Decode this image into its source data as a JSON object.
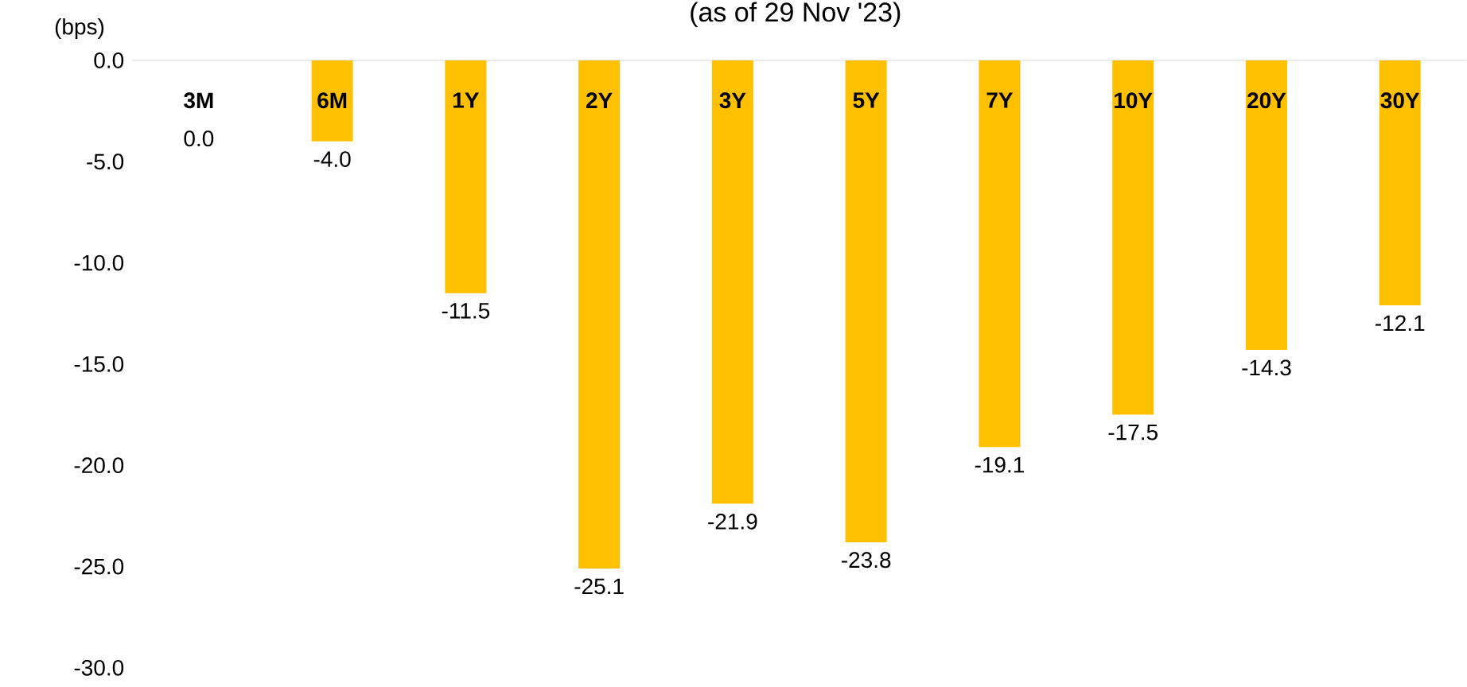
{
  "chart_data": {
    "type": "bar",
    "title": "(as of 29 Nov '23)",
    "ylabel": "(bps)",
    "categories": [
      "3M",
      "6M",
      "1Y",
      "2Y",
      "3Y",
      "5Y",
      "7Y",
      "10Y",
      "20Y",
      "30Y"
    ],
    "values": [
      0.0,
      -4.0,
      -11.5,
      -25.1,
      -21.9,
      -23.8,
      -19.1,
      -17.5,
      -14.3,
      -12.1
    ],
    "value_labels": [
      "0.0",
      "-4.0",
      "-11.5",
      "-25.1",
      "-21.9",
      "-23.8",
      "-19.1",
      "-17.5",
      "-14.3",
      "-12.1"
    ],
    "color": "#ffc000",
    "ylim": [
      -30,
      0
    ],
    "yticks": [
      {
        "value": 0,
        "label": "0.0"
      },
      {
        "value": -5,
        "label": "-5.0"
      },
      {
        "value": -10,
        "label": "-10.0"
      },
      {
        "value": -15,
        "label": "-15.0"
      },
      {
        "value": -20,
        "label": "-20.0"
      },
      {
        "value": -25,
        "label": "-25.0"
      },
      {
        "value": -30,
        "label": "-30.0"
      }
    ]
  }
}
